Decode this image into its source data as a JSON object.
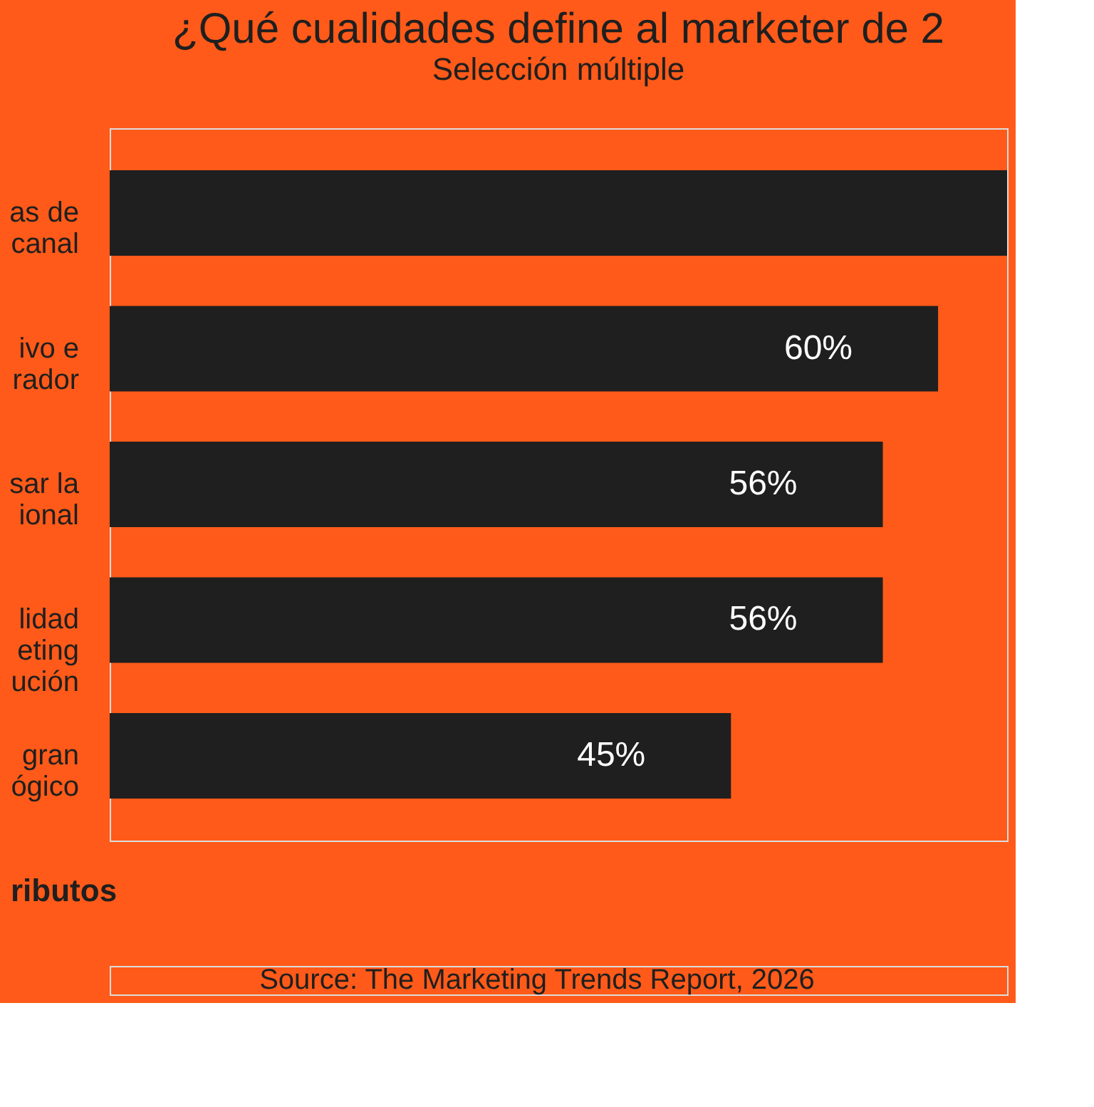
{
  "chart_data": {
    "type": "bar",
    "orientation": "horizontal",
    "title": "¿Qué cualidades define al marketer de 2",
    "subtitle": "Selección múltiple",
    "ylabel": "ributos",
    "categories": [
      "as de\ncanal",
      "ivo e\nrador",
      "sar la\nional",
      "lidad\neting\nución",
      "gran\nógico"
    ],
    "values": [
      65,
      60,
      56,
      56,
      45
    ],
    "value_labels": [
      null,
      "60%",
      "56%",
      "56%",
      "45%"
    ],
    "color": "#1f1f1f",
    "annotations": [
      "Source: The Marketing Trends Report, 2026"
    ],
    "grid": false
  }
}
